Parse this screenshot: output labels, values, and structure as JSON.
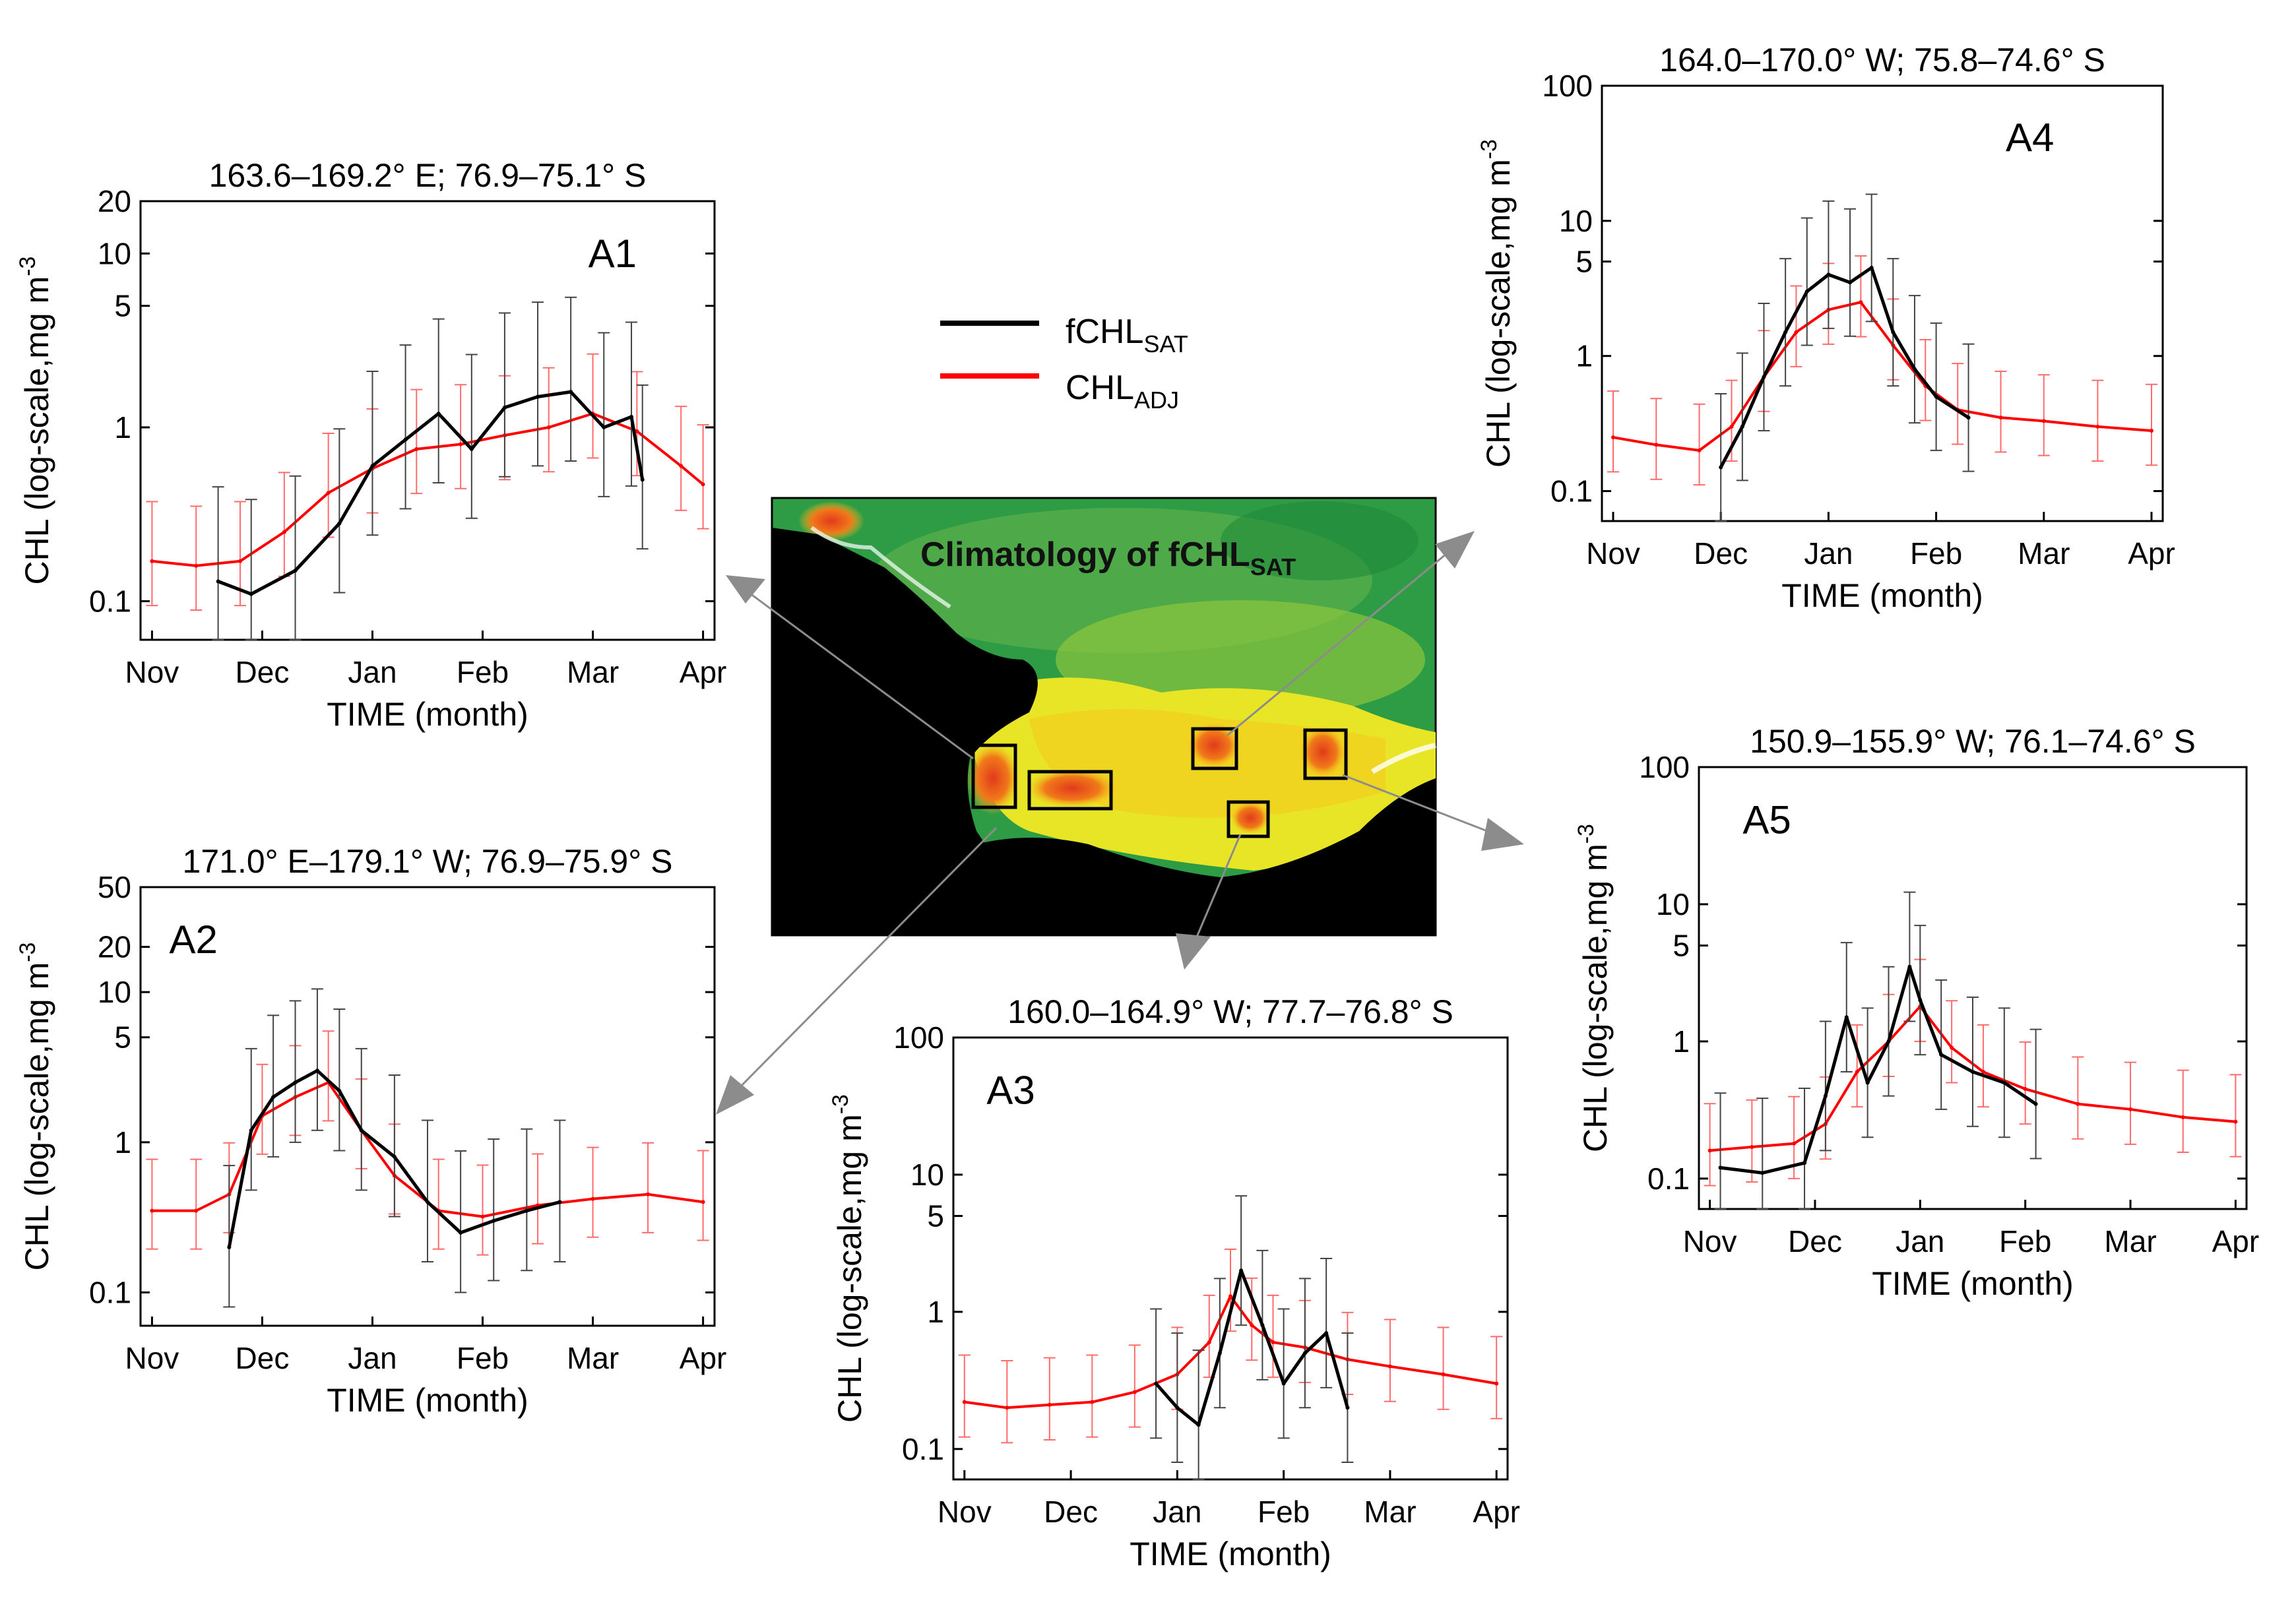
{
  "legend": {
    "black": {
      "base": "fCHL",
      "sub": "SAT",
      "color": "#000000"
    },
    "red": {
      "base": "CHL",
      "sub": "ADJ",
      "color": "#ff0000"
    }
  },
  "map": {
    "title_base": "Climatology of fCHL",
    "title_sub": "SAT"
  },
  "colors": {
    "chl_line": "#000000",
    "adj_line": "#ff0000",
    "arrow": "#8c8c8c",
    "land": "#000000"
  },
  "chart_data": [
    {
      "id": "A1",
      "type": "line",
      "label": "A1",
      "title": "163.6–169.2° E; 76.9–75.1° S",
      "xlabel": "TIME (month)",
      "ylabel": "CHL (log-scale,mg m",
      "ylabel_sup": "-3",
      "yscale": "log",
      "ylim": [
        0.06,
        20
      ],
      "yticks": [
        {
          "v": 0.1,
          "label": "0.1"
        },
        {
          "v": 1,
          "label": "1"
        },
        {
          "v": 5,
          "label": "5"
        },
        {
          "v": 10,
          "label": "10"
        },
        {
          "v": 20,
          "label": "20"
        }
      ],
      "xticks": [
        "Nov",
        "Dec",
        "Jan",
        "Feb",
        "Mar",
        "Apr"
      ],
      "series": [
        {
          "name": "fCHL SAT",
          "color": "#000000",
          "x": [
            0.6,
            0.9,
            1.3,
            1.7,
            2.0,
            2.3,
            2.6,
            2.9,
            3.2,
            3.5,
            3.8,
            4.1,
            4.35,
            4.45
          ],
          "values": [
            0.13,
            0.11,
            0.15,
            0.28,
            0.6,
            0.85,
            1.2,
            0.75,
            1.3,
            1.5,
            1.6,
            1.0,
            1.15,
            0.5
          ]
        },
        {
          "name": "CHL ADJ",
          "color": "#ff0000",
          "x": [
            0,
            0.4,
            0.8,
            1.2,
            1.6,
            2.0,
            2.4,
            2.8,
            3.2,
            3.6,
            4.0,
            4.4,
            4.8,
            5.0
          ],
          "values": [
            0.17,
            0.16,
            0.17,
            0.25,
            0.42,
            0.58,
            0.75,
            0.8,
            0.9,
            1.0,
            1.2,
            0.95,
            0.6,
            0.47
          ]
        }
      ]
    },
    {
      "id": "A2",
      "type": "line",
      "label": "A2",
      "title": "171.0° E–179.1° W; 76.9–75.9° S",
      "xlabel": "TIME (month)",
      "ylabel": "CHL (log-scale,mg m",
      "ylabel_sup": "-3",
      "yscale": "log",
      "ylim": [
        0.06,
        50
      ],
      "yticks": [
        {
          "v": 0.1,
          "label": "0.1"
        },
        {
          "v": 1,
          "label": "1"
        },
        {
          "v": 5,
          "label": "5"
        },
        {
          "v": 10,
          "label": "10"
        },
        {
          "v": 20,
          "label": "20"
        },
        {
          "v": 50,
          "label": "50"
        }
      ],
      "xticks": [
        "Nov",
        "Dec",
        "Jan",
        "Feb",
        "Mar",
        "Apr"
      ],
      "series": [
        {
          "name": "fCHL SAT",
          "color": "#000000",
          "x": [
            0.7,
            0.9,
            1.1,
            1.3,
            1.5,
            1.7,
            1.9,
            2.2,
            2.5,
            2.8,
            3.1,
            3.4,
            3.7
          ],
          "values": [
            0.2,
            1.2,
            2.0,
            2.5,
            3.0,
            2.2,
            1.2,
            0.8,
            0.4,
            0.25,
            0.3,
            0.35,
            0.4
          ]
        },
        {
          "name": "CHL ADJ",
          "color": "#ff0000",
          "x": [
            0,
            0.4,
            0.7,
            1.0,
            1.3,
            1.6,
            1.9,
            2.2,
            2.6,
            3.0,
            3.5,
            4.0,
            4.5,
            5.0
          ],
          "values": [
            0.35,
            0.35,
            0.45,
            1.5,
            2.0,
            2.5,
            1.2,
            0.6,
            0.35,
            0.32,
            0.38,
            0.42,
            0.45,
            0.4
          ]
        }
      ]
    },
    {
      "id": "A3",
      "type": "line",
      "label": "A3",
      "title": "160.0–164.9° W; 77.7–76.8° S",
      "xlabel": "TIME (month)",
      "ylabel": "CHL (log-scale,mg m",
      "ylabel_sup": "-3",
      "yscale": "log",
      "ylim": [
        0.06,
        100
      ],
      "yticks": [
        {
          "v": 0.1,
          "label": "0.1"
        },
        {
          "v": 1,
          "label": "1"
        },
        {
          "v": 5,
          "label": "5"
        },
        {
          "v": 10,
          "label": "10"
        },
        {
          "v": 100,
          "label": "100"
        }
      ],
      "xticks": [
        "Nov",
        "Dec",
        "Jan",
        "Feb",
        "Mar",
        "Apr"
      ],
      "series": [
        {
          "name": "fCHL SAT",
          "color": "#000000",
          "x": [
            1.8,
            2.0,
            2.2,
            2.4,
            2.6,
            2.8,
            3.0,
            3.2,
            3.4,
            3.6
          ],
          "values": [
            0.3,
            0.2,
            0.15,
            0.5,
            2.0,
            0.8,
            0.3,
            0.5,
            0.7,
            0.2
          ]
        },
        {
          "name": "CHL ADJ",
          "color": "#ff0000",
          "x": [
            0,
            0.4,
            0.8,
            1.2,
            1.6,
            2.0,
            2.3,
            2.5,
            2.7,
            2.9,
            3.2,
            3.6,
            4.0,
            4.5,
            5.0
          ],
          "values": [
            0.22,
            0.2,
            0.21,
            0.22,
            0.26,
            0.35,
            0.6,
            1.3,
            0.8,
            0.6,
            0.55,
            0.45,
            0.4,
            0.35,
            0.3
          ]
        }
      ]
    },
    {
      "id": "A4",
      "type": "line",
      "label": "A4",
      "title": "164.0–170.0° W; 75.8–74.6° S",
      "xlabel": "TIME (month)",
      "ylabel": "CHL (log-scale,mg m",
      "ylabel_sup": "-3",
      "yscale": "log",
      "ylim": [
        0.06,
        100
      ],
      "yticks": [
        {
          "v": 0.1,
          "label": "0.1"
        },
        {
          "v": 1,
          "label": "1"
        },
        {
          "v": 5,
          "label": "5"
        },
        {
          "v": 10,
          "label": "10"
        },
        {
          "v": 100,
          "label": "100"
        }
      ],
      "xticks": [
        "Nov",
        "Dec",
        "Jan",
        "Feb",
        "Mar",
        "Apr"
      ],
      "series": [
        {
          "name": "fCHL SAT",
          "color": "#000000",
          "x": [
            1.0,
            1.2,
            1.4,
            1.6,
            1.8,
            2.0,
            2.2,
            2.4,
            2.6,
            2.8,
            3.0,
            3.3
          ],
          "values": [
            0.15,
            0.3,
            0.7,
            1.5,
            3.0,
            4.0,
            3.5,
            4.5,
            1.5,
            0.8,
            0.5,
            0.35
          ]
        },
        {
          "name": "CHL ADJ",
          "color": "#ff0000",
          "x": [
            0,
            0.4,
            0.8,
            1.1,
            1.4,
            1.7,
            2.0,
            2.3,
            2.6,
            2.9,
            3.2,
            3.6,
            4.0,
            4.5,
            5.0
          ],
          "values": [
            0.25,
            0.22,
            0.2,
            0.3,
            0.7,
            1.5,
            2.2,
            2.5,
            1.2,
            0.6,
            0.4,
            0.35,
            0.33,
            0.3,
            0.28
          ]
        }
      ]
    },
    {
      "id": "A5",
      "type": "line",
      "label": "A5",
      "title": "150.9–155.9° W; 76.1–74.6° S",
      "xlabel": "TIME (month)",
      "ylabel": "CHL (log-scale,mg m",
      "ylabel_sup": "-3",
      "yscale": "log",
      "ylim": [
        0.06,
        100
      ],
      "yticks": [
        {
          "v": 0.1,
          "label": "0.1"
        },
        {
          "v": 1,
          "label": "1"
        },
        {
          "v": 5,
          "label": "5"
        },
        {
          "v": 10,
          "label": "10"
        },
        {
          "v": 100,
          "label": "100"
        }
      ],
      "xticks": [
        "Nov",
        "Dec",
        "Jan",
        "Feb",
        "Mar",
        "Apr"
      ],
      "series": [
        {
          "name": "fCHL SAT",
          "color": "#000000",
          "x": [
            0.1,
            0.5,
            0.9,
            1.1,
            1.3,
            1.5,
            1.7,
            1.9,
            2.0,
            2.2,
            2.5,
            2.8,
            3.1
          ],
          "values": [
            0.12,
            0.11,
            0.13,
            0.4,
            1.5,
            0.5,
            1.0,
            3.5,
            2.0,
            0.8,
            0.6,
            0.5,
            0.35
          ]
        },
        {
          "name": "CHL ADJ",
          "color": "#ff0000",
          "x": [
            0,
            0.4,
            0.8,
            1.1,
            1.4,
            1.7,
            2.0,
            2.3,
            2.6,
            3.0,
            3.5,
            4.0,
            4.5,
            5.0
          ],
          "values": [
            0.16,
            0.17,
            0.18,
            0.25,
            0.6,
            1.0,
            1.8,
            0.9,
            0.6,
            0.45,
            0.35,
            0.32,
            0.28,
            0.26
          ]
        }
      ]
    }
  ]
}
